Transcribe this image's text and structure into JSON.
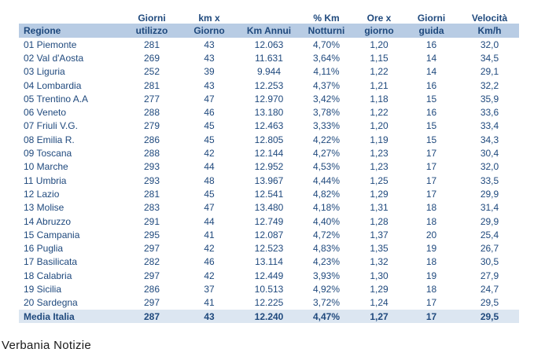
{
  "chart_data": {
    "type": "table",
    "columns_line1": [
      "",
      "Giorni",
      "km x",
      "",
      "% Km",
      "Ore x",
      "Giorni",
      "Velocità"
    ],
    "columns_line2": [
      "Regione",
      "utilizzo",
      "Giorno",
      "Km Annui",
      "Notturni",
      "giorno",
      "guida",
      "Km/h"
    ],
    "rows": [
      [
        "01 Piemonte",
        "281",
        "43",
        "12.063",
        "4,70%",
        "1,20",
        "16",
        "32,0"
      ],
      [
        "02 Val d'Aosta",
        "269",
        "43",
        "11.631",
        "3,64%",
        "1,15",
        "14",
        "34,5"
      ],
      [
        "03 Liguria",
        "252",
        "39",
        "9.944",
        "4,11%",
        "1,22",
        "14",
        "29,1"
      ],
      [
        "04 Lombardia",
        "281",
        "43",
        "12.253",
        "4,37%",
        "1,21",
        "16",
        "32,2"
      ],
      [
        "05 Trentino A.A",
        "277",
        "47",
        "12.970",
        "3,42%",
        "1,18",
        "15",
        "35,9"
      ],
      [
        "06 Veneto",
        "288",
        "46",
        "13.180",
        "3,78%",
        "1,22",
        "16",
        "33,6"
      ],
      [
        "07 Friuli V.G.",
        "279",
        "45",
        "12.463",
        "3,33%",
        "1,20",
        "15",
        "33,4"
      ],
      [
        "08 Emilia R.",
        "286",
        "45",
        "12.805",
        "4,22%",
        "1,19",
        "15",
        "34,3"
      ],
      [
        "09 Toscana",
        "288",
        "42",
        "12.144",
        "4,27%",
        "1,23",
        "17",
        "30,4"
      ],
      [
        "10 Marche",
        "293",
        "44",
        "12.952",
        "4,53%",
        "1,23",
        "17",
        "32,0"
      ],
      [
        "11 Umbria",
        "293",
        "48",
        "13.967",
        "4,44%",
        "1,25",
        "17",
        "33,5"
      ],
      [
        "12 Lazio",
        "281",
        "45",
        "12.541",
        "4,82%",
        "1,29",
        "17",
        "29,9"
      ],
      [
        "13 Molise",
        "283",
        "47",
        "13.480",
        "4,18%",
        "1,31",
        "18",
        "31,4"
      ],
      [
        "14 Abruzzo",
        "291",
        "44",
        "12.749",
        "4,40%",
        "1,28",
        "18",
        "29,9"
      ],
      [
        "15 Campania",
        "295",
        "41",
        "12.087",
        "4,72%",
        "1,37",
        "20",
        "25,4"
      ],
      [
        "16 Puglia",
        "297",
        "42",
        "12.523",
        "4,83%",
        "1,35",
        "19",
        "26,7"
      ],
      [
        "17 Basilicata",
        "282",
        "46",
        "13.114",
        "4,23%",
        "1,32",
        "18",
        "30,5"
      ],
      [
        "18 Calabria",
        "297",
        "42",
        "12.449",
        "3,93%",
        "1,30",
        "19",
        "27,9"
      ],
      [
        "19 Sicilia",
        "286",
        "37",
        "10.513",
        "4,92%",
        "1,29",
        "18",
        "24,7"
      ],
      [
        "20 Sardegna",
        "297",
        "41",
        "12.225",
        "3,72%",
        "1,24",
        "17",
        "29,5"
      ]
    ],
    "total_row": [
      "Media Italia",
      "287",
      "43",
      "12.240",
      "4,47%",
      "1,27",
      "17",
      "29,5"
    ]
  },
  "footer": {
    "credit": "Verbania Notizie"
  },
  "colors": {
    "text": "#1F497D",
    "header_fill": "#B8CCE4",
    "total_fill": "#DCE6F1",
    "credit_color": "#1a1a1a"
  }
}
